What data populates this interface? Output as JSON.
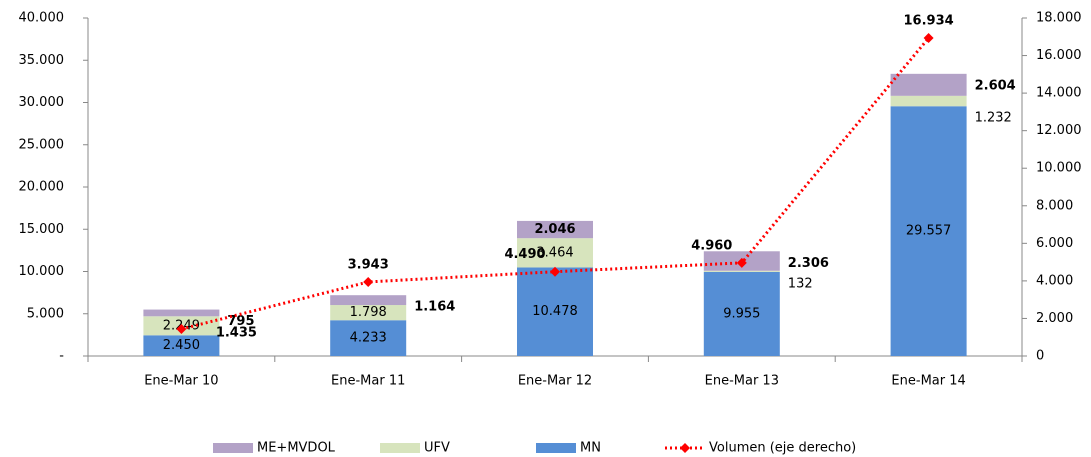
{
  "chart_data": {
    "type": "bar",
    "stacked": true,
    "categories": [
      "Ene-Mar 10",
      "Ene-Mar 11",
      "Ene-Mar 12",
      "Ene-Mar 13",
      "Ene-Mar 14"
    ],
    "series": [
      {
        "name": "MN",
        "color": "#558ed5",
        "values": [
          2450,
          4233,
          10478,
          9955,
          29557
        ],
        "value_labels": [
          "2.450",
          "4.233",
          "10.478",
          "9.955",
          "29.557"
        ]
      },
      {
        "name": "UFV",
        "color": "#d7e4bd",
        "values": [
          2249,
          1798,
          3464,
          132,
          1232
        ],
        "value_labels": [
          "2.249",
          "1.798",
          "3.464",
          "132",
          "1.232"
        ]
      },
      {
        "name": "ME+MVDOL",
        "color": "#b3a2c7",
        "values": [
          795,
          1164,
          2046,
          2306,
          2604
        ],
        "value_labels": [
          "795",
          "1.164",
          "2.046",
          "2.306",
          "2.604"
        ]
      },
      {
        "name": "Volumen (eje derecho)",
        "color": "#ff0000",
        "type": "line",
        "axis": "y2",
        "values": [
          1435,
          3943,
          4490,
          4960,
          16934
        ],
        "value_labels": [
          "1.435",
          "3.943",
          "4.490",
          "4.960",
          "16.934"
        ]
      }
    ],
    "ylim": [
      0,
      40000
    ],
    "yticks": [
      {
        "value": 0,
        "label": "-"
      },
      {
        "value": 5000,
        "label": "5.000"
      },
      {
        "value": 10000,
        "label": "10.000"
      },
      {
        "value": 15000,
        "label": "15.000"
      },
      {
        "value": 20000,
        "label": "20.000"
      },
      {
        "value": 25000,
        "label": "25.000"
      },
      {
        "value": 30000,
        "label": "30.000"
      },
      {
        "value": 35000,
        "label": "35.000"
      },
      {
        "value": 40000,
        "label": "40.000"
      }
    ],
    "y2lim": [
      0,
      18000
    ],
    "y2ticks": [
      0,
      {
        "value": 2000,
        "label": "2.000"
      },
      {
        "value": 4000,
        "label": "4.000"
      },
      {
        "value": 6000,
        "label": "6.000"
      },
      {
        "value": 8000,
        "label": "8.000"
      },
      {
        "value": 10000,
        "label": "10.000"
      },
      {
        "value": 12000,
        "label": "12.000"
      },
      {
        "value": 14000,
        "label": "14.000"
      },
      {
        "value": 16000,
        "label": "16.000"
      },
      {
        "value": 18000,
        "label": "18.000"
      }
    ],
    "grid": false,
    "legend": "bottom"
  }
}
